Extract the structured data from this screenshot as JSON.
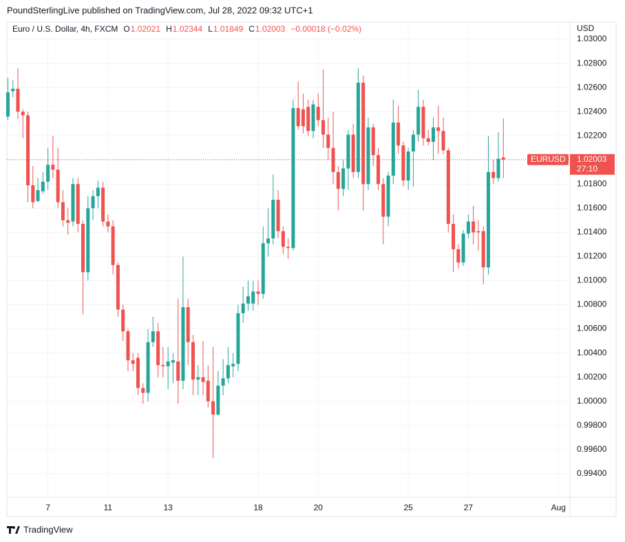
{
  "source": "PoundSterlingLive published on TradingView.com, Jul 28, 2022 09:32 UTC+1",
  "brand": "TradingView",
  "chart_data": {
    "type": "candlestick",
    "symbol": "Euro / U.S. Dollar, 4h, FXCM",
    "ohlc_labels": [
      "O",
      "H",
      "L",
      "C"
    ],
    "change": "−0.00018 (−0.02%)",
    "currency": "USD",
    "ticker": "EURUSD",
    "countdown": "27:10",
    "up_color": "#26a69a",
    "down_color": "#ef5350",
    "grid": true,
    "open": [
      1.0236,
      1.0257,
      1.0259,
      1.024,
      1.0237,
      1.0179,
      1.0166,
      1.0174,
      1.0182,
      1.0196,
      1.0192,
      1.0165,
      1.015,
      1.0149,
      1.018,
      1.0147,
      1.0107,
      1.016,
      1.017,
      1.0177,
      1.0149,
      1.0145,
      1.0113,
      1.0076,
      1.0058,
      1.0034,
      1.0036,
      1.0011,
      1.0007,
      1.0049,
      1.0058,
      1.003,
      1.0029,
      1.0032,
      1.0033,
      1.0017,
      1.0078,
      1.0049,
      1.0018,
      1.002,
      1.0017,
      1.0,
      0.9989,
      1.0013,
      1.0019,
      1.0029,
      1.0031,
      1.0073,
      1.0081,
      1.0081,
      1.0091,
      1.0089,
      1.0131,
      1.0135,
      1.0167,
      1.0141,
      1.0128,
      1.0127,
      1.0243,
      1.0242,
      1.0244,
      1.0224,
      1.0244,
      1.0233,
      1.0221,
      1.021,
      1.019,
      1.0176,
      1.0193,
      1.0221,
      1.019,
      1.0264,
      1.018,
      1.0227,
      1.0204,
      1.018,
      1.0153,
      1.0187,
      1.0231,
      1.0212,
      1.0183,
      1.0207,
      1.0221,
      1.0244,
      1.0218,
      1.0215,
      1.0227,
      1.0224,
      1.0208,
      1.0147,
      1.0126,
      1.0115,
      1.0139,
      1.0149,
      1.0141,
      1.0141,
      1.0111,
      1.019,
      1.0185,
      1.02021
    ],
    "high": [
      1.0268,
      1.0266,
      1.0276,
      1.0242,
      1.024,
      1.0195,
      1.0185,
      1.019,
      1.021,
      1.022,
      1.021,
      1.0175,
      1.016,
      1.0185,
      1.0185,
      1.015,
      1.017,
      1.0175,
      1.0183,
      1.0182,
      1.0155,
      1.015,
      1.0115,
      1.008,
      1.006,
      1.004,
      1.004,
      1.0015,
      1.006,
      1.007,
      1.0065,
      1.0045,
      1.0045,
      1.004,
      1.0085,
      1.012,
      1.0085,
      1.0055,
      1.003,
      1.005,
      1.003,
      1.0045,
      1.0025,
      1.0035,
      1.0045,
      1.004,
      1.008,
      1.0095,
      1.01,
      1.01,
      1.01,
      1.0145,
      1.016,
      1.0188,
      1.0175,
      1.0145,
      1.0135,
      1.025,
      1.0265,
      1.0255,
      1.025,
      1.025,
      1.0255,
      1.0275,
      1.0235,
      1.024,
      1.0195,
      1.02,
      1.0225,
      1.023,
      1.0276,
      1.027,
      1.0235,
      1.023,
      1.021,
      1.0185,
      1.019,
      1.025,
      1.0245,
      1.0215,
      1.021,
      1.0225,
      1.0258,
      1.025,
      1.0225,
      1.0235,
      1.0245,
      1.0235,
      1.021,
      1.0155,
      1.013,
      1.0142,
      1.0155,
      1.0162,
      1.015,
      1.0145,
      1.022,
      1.02,
      1.0223,
      1.02344
    ],
    "low": [
      1.0233,
      1.0252,
      1.0234,
      1.0218,
      1.0165,
      1.016,
      1.0165,
      1.0172,
      1.0175,
      1.0185,
      1.016,
      1.0145,
      1.0138,
      1.0145,
      1.014,
      1.0072,
      1.01,
      1.015,
      1.016,
      1.0145,
      1.014,
      1.0105,
      1.007,
      1.005,
      1.0025,
      1.0025,
      1.0005,
      0.9998,
      1.0,
      1.0045,
      1.002,
      1.002,
      1.001,
      1.0015,
      0.9998,
      1.001,
      1.003,
      1.0005,
      1.0005,
      1.0005,
      0.9995,
      0.9953,
      0.9988,
      1.0005,
      1.0015,
      1.002,
      1.0025,
      1.0065,
      1.0075,
      1.0075,
      1.008,
      1.0085,
      1.012,
      1.013,
      1.0135,
      1.0122,
      1.0118,
      1.0125,
      1.0225,
      1.0222,
      1.022,
      1.0218,
      1.0228,
      1.021,
      1.02,
      1.018,
      1.0158,
      1.017,
      1.0175,
      1.0185,
      1.0185,
      1.0158,
      1.0175,
      1.0195,
      1.0175,
      1.013,
      1.0145,
      1.018,
      1.0205,
      1.0178,
      1.0175,
      1.0178,
      1.0215,
      1.0212,
      1.0212,
      1.02,
      1.0205,
      1.0205,
      1.014,
      1.0107,
      1.011,
      1.0112,
      1.0135,
      1.013,
      1.0125,
      1.0097,
      1.0105,
      1.018,
      1.0182,
      1.01849
    ],
    "close": [
      1.0256,
      1.0259,
      1.024,
      1.0237,
      1.0179,
      1.0165,
      1.0175,
      1.0182,
      1.0196,
      1.0192,
      1.0165,
      1.015,
      1.0148,
      1.018,
      1.0147,
      1.0107,
      1.016,
      1.017,
      1.0177,
      1.0149,
      1.0145,
      1.0113,
      1.0076,
      1.0058,
      1.0034,
      1.0031,
      1.0011,
      1.0007,
      1.0049,
      1.0058,
      1.003,
      1.0029,
      1.0033,
      1.0034,
      1.0017,
      1.0078,
      1.0049,
      1.0018,
      1.002,
      1.0016,
      1.0,
      0.9989,
      1.0013,
      1.0019,
      1.003,
      1.0031,
      1.0073,
      1.0081,
      1.0087,
      1.0091,
      1.0089,
      1.0131,
      1.0135,
      1.0167,
      1.0141,
      1.0128,
      1.0127,
      1.0243,
      1.0228,
      1.0228,
      1.0224,
      1.0246,
      1.0233,
      1.0221,
      1.021,
      1.019,
      1.0176,
      1.0193,
      1.0221,
      1.019,
      1.0264,
      1.018,
      1.0227,
      1.0204,
      1.018,
      1.0153,
      1.0187,
      1.0231,
      1.0212,
      1.0183,
      1.0207,
      1.0221,
      1.0244,
      1.0218,
      1.0215,
      1.0227,
      1.0224,
      1.0208,
      1.0147,
      1.0126,
      1.0115,
      1.0139,
      1.0149,
      1.014,
      1.014,
      1.0111,
      1.019,
      1.0185,
      1.0201,
      1.02003
    ],
    "xlim": [
      -0.2,
      112.3
    ],
    "xticks": [
      {
        "value": 8,
        "label": "7"
      },
      {
        "value": 20,
        "label": "11"
      },
      {
        "value": 32,
        "label": "13"
      },
      {
        "value": 50,
        "label": "18"
      },
      {
        "value": 62,
        "label": "20"
      },
      {
        "value": 80,
        "label": "25"
      },
      {
        "value": 92,
        "label": "27"
      },
      {
        "value": 110,
        "label": "Aug"
      }
    ],
    "ylim": [
      0.99205,
      1.03143
    ],
    "yticks": [
      {
        "value": 0.994,
        "label": "0.99400"
      },
      {
        "value": 0.996,
        "label": "0.99600"
      },
      {
        "value": 0.998,
        "label": "0.99800"
      },
      {
        "value": 1.0,
        "label": "1.00000"
      },
      {
        "value": 1.002,
        "label": "1.00200"
      },
      {
        "value": 1.004,
        "label": "1.00400"
      },
      {
        "value": 1.006,
        "label": "1.00600"
      },
      {
        "value": 1.008,
        "label": "1.00800"
      },
      {
        "value": 1.01,
        "label": "1.01000"
      },
      {
        "value": 1.012,
        "label": "1.01200"
      },
      {
        "value": 1.014,
        "label": "1.01400"
      },
      {
        "value": 1.016,
        "label": "1.01600"
      },
      {
        "value": 1.018,
        "label": "1.01800"
      },
      {
        "value": 1.02,
        "label": "1.02000"
      },
      {
        "value": 1.022,
        "label": "1.02200"
      },
      {
        "value": 1.024,
        "label": "1.02400"
      },
      {
        "value": 1.026,
        "label": "1.02600"
      },
      {
        "value": 1.028,
        "label": "1.02800"
      },
      {
        "value": 1.03,
        "label": "1.03000"
      }
    ]
  }
}
